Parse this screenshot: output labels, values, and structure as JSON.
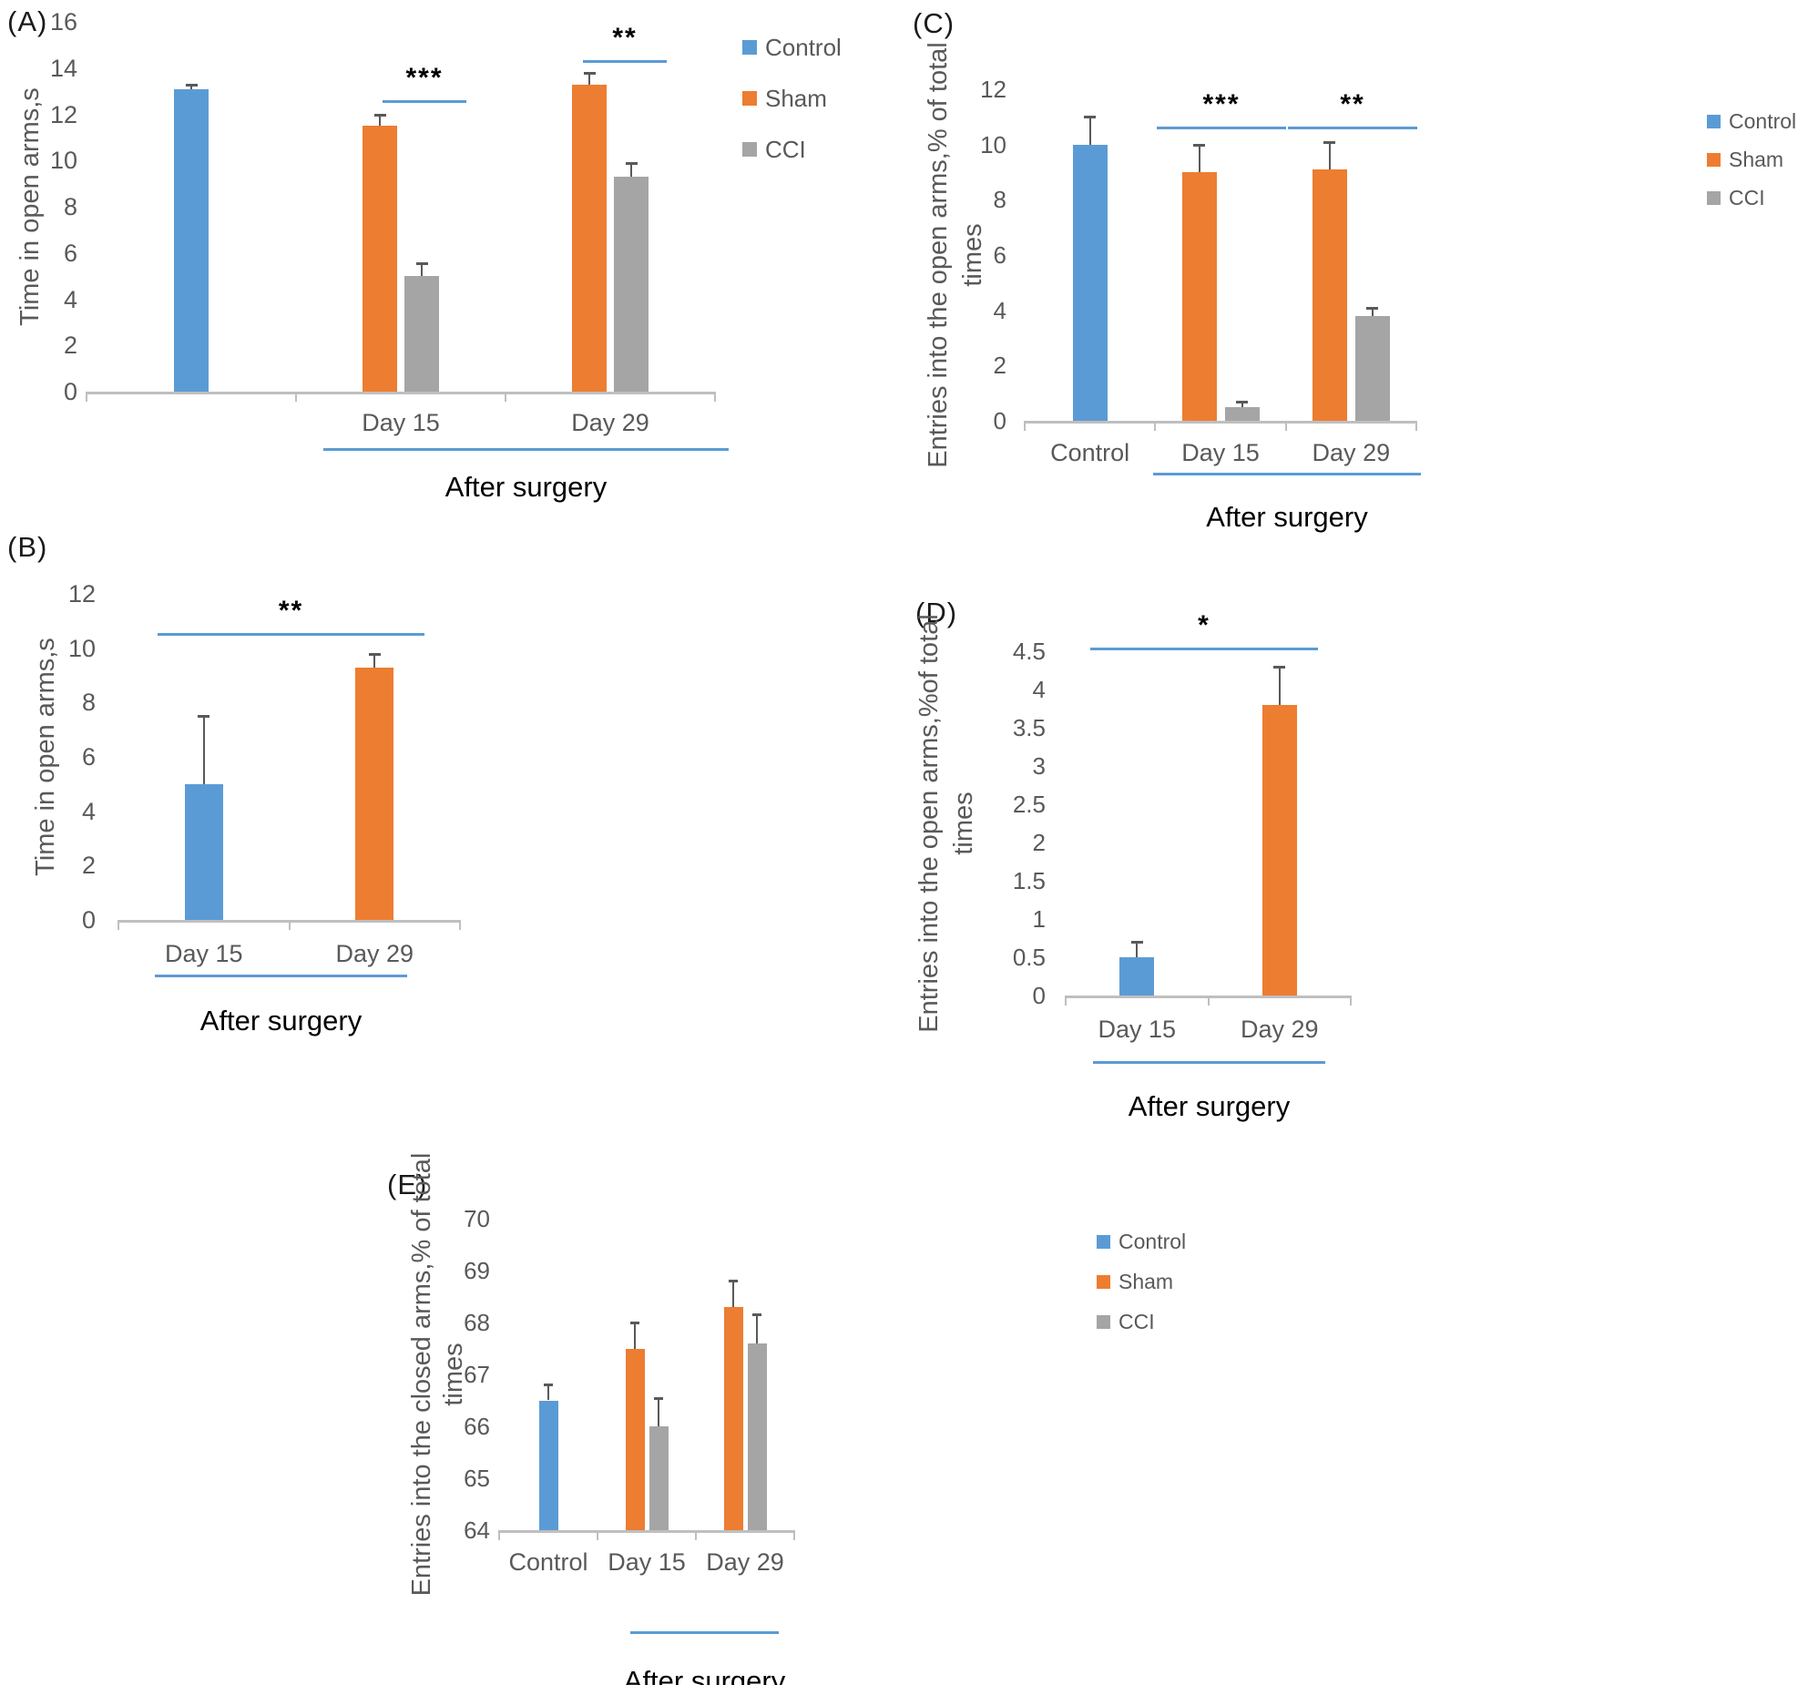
{
  "figure": {
    "description_note": "Five-panel bar chart figure",
    "after_surgery_note": "After surgery"
  },
  "colors": {
    "control_blue": "#5B9BD5",
    "sham_orange": "#ED7D31",
    "cci_gray": "#A5A5A5",
    "axis_line": "#BFBFBF",
    "text_gray": "#595959",
    "sig_line_blue": "#5B9BD5",
    "error_bar": "#595959",
    "annotation_black": "#000000"
  },
  "legend": {
    "items": [
      {
        "label": "Control",
        "color": "blue"
      },
      {
        "label": "Sham",
        "color": "orange"
      },
      {
        "label": "CCI",
        "color": "gray"
      }
    ]
  },
  "chart_data": [
    {
      "type": "bar",
      "panel_label": "(A)",
      "y_title_lines": [
        "Time in open arms,s"
      ],
      "ylim": [
        0,
        16
      ],
      "ystep": 2,
      "x_axis_note": "After surgery",
      "legend_position": "right-top",
      "grid": false,
      "groups": [
        {
          "x_label": "",
          "bars": [
            {
              "color": "blue",
              "value": 13.1,
              "err": 0.2
            }
          ]
        },
        {
          "x_label": "Day 15",
          "bars": [
            {
              "color": "orange",
              "value": 11.5,
              "err": 0.5
            },
            {
              "color": "gray",
              "value": 5.0,
              "err": 0.55
            }
          ]
        },
        {
          "x_label": "Day 29",
          "bars": [
            {
              "color": "orange",
              "value": 13.3,
              "err": 0.5
            },
            {
              "color": "gray",
              "value": 9.3,
              "err": 0.6
            }
          ]
        }
      ],
      "significance": [
        {
          "text": "***",
          "over_group": "Day 15",
          "line_value": 12.6
        },
        {
          "text": "**",
          "over_group": "Day 29",
          "line_value": 14.35
        }
      ],
      "has_legend": true
    },
    {
      "type": "bar",
      "panel_label": "(B)",
      "y_title_lines": [
        "Time in open arms,s"
      ],
      "ylim": [
        0,
        12
      ],
      "ystep": 2,
      "x_axis_note": "After surgery",
      "grid": false,
      "groups": [
        {
          "x_label": "Day 15",
          "bars": [
            {
              "color": "blue",
              "value": 5.0,
              "err": 2.5
            }
          ]
        },
        {
          "x_label": "Day 29",
          "bars": [
            {
              "color": "orange",
              "value": 9.3,
              "err": 0.5
            }
          ]
        }
      ],
      "significance": [
        {
          "text": "**",
          "over_group": "Day 15 vs Day 29",
          "line_value": 10.55
        }
      ],
      "has_legend": false
    },
    {
      "type": "bar",
      "panel_label": "(C)",
      "y_title_lines": [
        "Entries into the open arms,% of total",
        "times"
      ],
      "ylim": [
        0,
        12
      ],
      "ystep": 2,
      "x_axis_note": "After surgery",
      "legend_position": "right-top",
      "grid": false,
      "groups": [
        {
          "x_label": "Control",
          "bars": [
            {
              "color": "blue",
              "value": 10.0,
              "err": 1.0
            }
          ]
        },
        {
          "x_label": "Day 15",
          "bars": [
            {
              "color": "orange",
              "value": 9.0,
              "err": 1.0
            },
            {
              "color": "gray",
              "value": 0.5,
              "err": 0.2
            }
          ]
        },
        {
          "x_label": "Day 29",
          "bars": [
            {
              "color": "orange",
              "value": 9.1,
              "err": 1.0
            },
            {
              "color": "gray",
              "value": 3.8,
              "err": 0.3
            }
          ]
        }
      ],
      "significance": [
        {
          "text": "***",
          "over_group": "Day 15",
          "line_value": 10.65
        },
        {
          "text": "**",
          "over_group": "Day 29",
          "line_value": 10.65
        }
      ],
      "has_legend": true
    },
    {
      "type": "bar",
      "panel_label": "(D)",
      "y_title_lines": [
        "Entries into the open arms,%of total",
        "times"
      ],
      "ylim": [
        0,
        4.5
      ],
      "ystep": 0.5,
      "x_axis_note": "After surgery",
      "grid": false,
      "groups": [
        {
          "x_label": "Day 15",
          "bars": [
            {
              "color": "blue",
              "value": 0.5,
              "err": 0.2
            }
          ]
        },
        {
          "x_label": "Day 29",
          "bars": [
            {
              "color": "orange",
              "value": 3.8,
              "err": 0.5
            }
          ]
        }
      ],
      "significance": [
        {
          "text": "*",
          "over_group": "Day 15 vs Day 29",
          "line_value": 4.55
        }
      ],
      "has_legend": false
    },
    {
      "type": "bar",
      "panel_label": "(E)",
      "y_title_lines": [
        "Entries into the closed arms,% of total",
        "times"
      ],
      "ylim": [
        64,
        70
      ],
      "ystep": 1,
      "x_axis_note": "After surgery",
      "legend_position": "right-top",
      "grid": false,
      "groups": [
        {
          "x_label": "Control",
          "bars": [
            {
              "color": "blue",
              "value": 66.5,
              "err": 0.3
            }
          ]
        },
        {
          "x_label": "Day 15",
          "bars": [
            {
              "color": "orange",
              "value": 67.5,
              "err": 0.5
            },
            {
              "color": "gray",
              "value": 66.0,
              "err": 0.55
            }
          ]
        },
        {
          "x_label": "Day 29",
          "bars": [
            {
              "color": "orange",
              "value": 68.3,
              "err": 0.5
            },
            {
              "color": "gray",
              "value": 67.6,
              "err": 0.55
            }
          ]
        }
      ],
      "significance": [],
      "has_legend": true
    }
  ]
}
